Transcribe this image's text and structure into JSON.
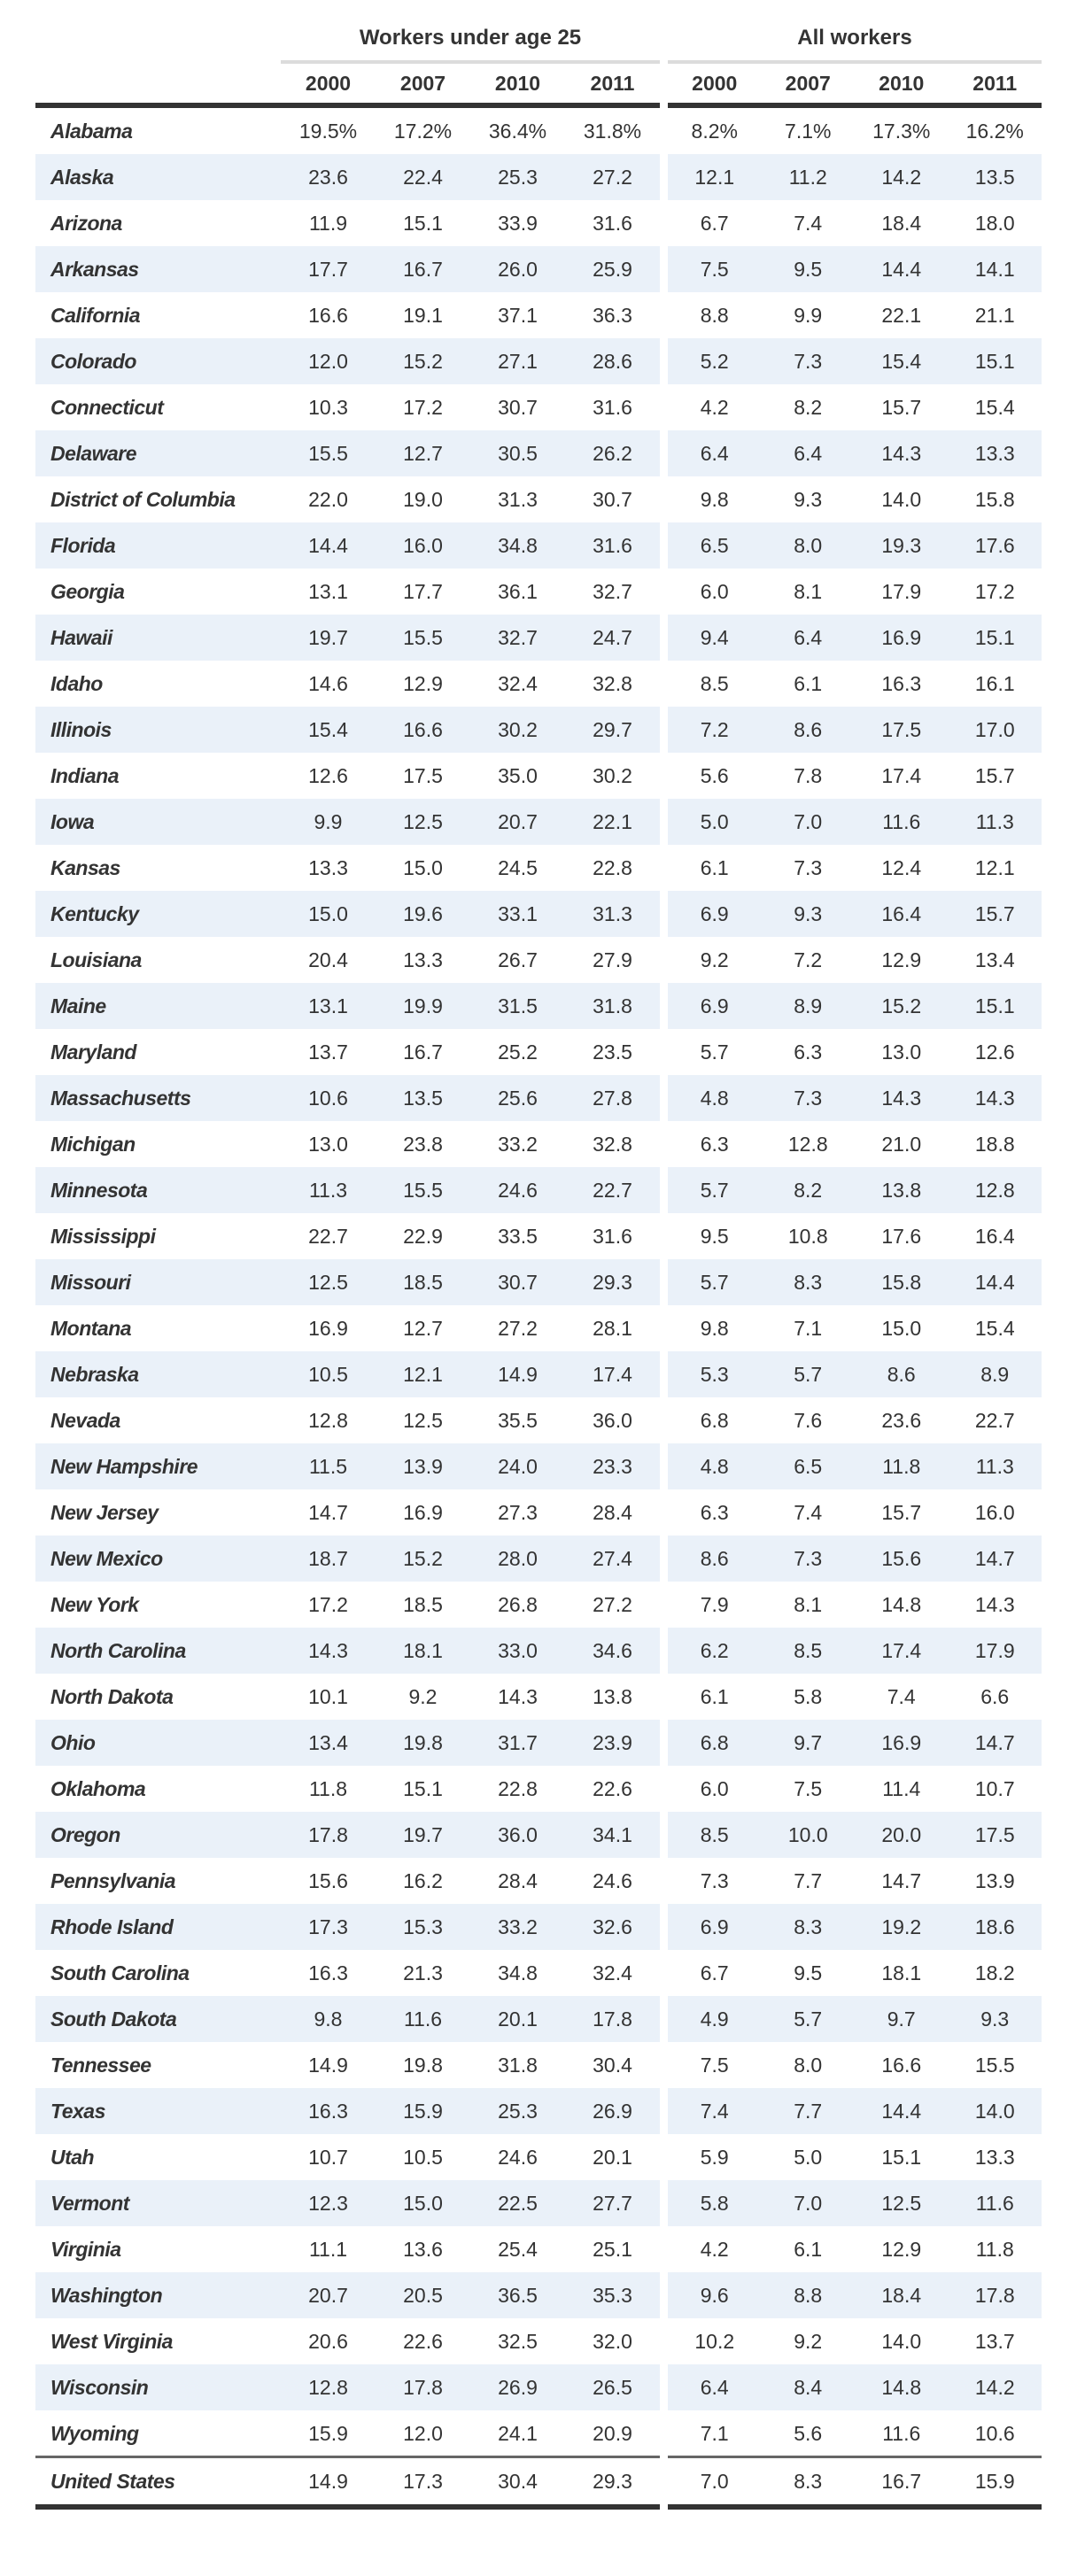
{
  "table": {
    "groups": [
      {
        "title": "Workers under age 25",
        "years": [
          "2000",
          "2007",
          "2010",
          "2011"
        ]
      },
      {
        "title": "All workers",
        "years": [
          "2000",
          "2007",
          "2010",
          "2011"
        ]
      }
    ],
    "rows": [
      {
        "state": "Alabama",
        "under25": [
          "19.5%",
          "17.2%",
          "36.4%",
          "31.8%"
        ],
        "all": [
          "8.2%",
          "7.1%",
          "17.3%",
          "16.2%"
        ]
      },
      {
        "state": "Alaska",
        "under25": [
          "23.6",
          "22.4",
          "25.3",
          "27.2"
        ],
        "all": [
          "12.1",
          "11.2",
          "14.2",
          "13.5"
        ]
      },
      {
        "state": "Arizona",
        "under25": [
          "11.9",
          "15.1",
          "33.9",
          "31.6"
        ],
        "all": [
          "6.7",
          "7.4",
          "18.4",
          "18.0"
        ]
      },
      {
        "state": "Arkansas",
        "under25": [
          "17.7",
          "16.7",
          "26.0",
          "25.9"
        ],
        "all": [
          "7.5",
          "9.5",
          "14.4",
          "14.1"
        ]
      },
      {
        "state": "California",
        "under25": [
          "16.6",
          "19.1",
          "37.1",
          "36.3"
        ],
        "all": [
          "8.8",
          "9.9",
          "22.1",
          "21.1"
        ]
      },
      {
        "state": "Colorado",
        "under25": [
          "12.0",
          "15.2",
          "27.1",
          "28.6"
        ],
        "all": [
          "5.2",
          "7.3",
          "15.4",
          "15.1"
        ]
      },
      {
        "state": "Connecticut",
        "under25": [
          "10.3",
          "17.2",
          "30.7",
          "31.6"
        ],
        "all": [
          "4.2",
          "8.2",
          "15.7",
          "15.4"
        ]
      },
      {
        "state": "Delaware",
        "under25": [
          "15.5",
          "12.7",
          "30.5",
          "26.2"
        ],
        "all": [
          "6.4",
          "6.4",
          "14.3",
          "13.3"
        ]
      },
      {
        "state": "District of Columbia",
        "under25": [
          "22.0",
          "19.0",
          "31.3",
          "30.7"
        ],
        "all": [
          "9.8",
          "9.3",
          "14.0",
          "15.8"
        ]
      },
      {
        "state": "Florida",
        "under25": [
          "14.4",
          "16.0",
          "34.8",
          "31.6"
        ],
        "all": [
          "6.5",
          "8.0",
          "19.3",
          "17.6"
        ]
      },
      {
        "state": "Georgia",
        "under25": [
          "13.1",
          "17.7",
          "36.1",
          "32.7"
        ],
        "all": [
          "6.0",
          "8.1",
          "17.9",
          "17.2"
        ]
      },
      {
        "state": "Hawaii",
        "under25": [
          "19.7",
          "15.5",
          "32.7",
          "24.7"
        ],
        "all": [
          "9.4",
          "6.4",
          "16.9",
          "15.1"
        ]
      },
      {
        "state": "Idaho",
        "under25": [
          "14.6",
          "12.9",
          "32.4",
          "32.8"
        ],
        "all": [
          "8.5",
          "6.1",
          "16.3",
          "16.1"
        ]
      },
      {
        "state": "Illinois",
        "under25": [
          "15.4",
          "16.6",
          "30.2",
          "29.7"
        ],
        "all": [
          "7.2",
          "8.6",
          "17.5",
          "17.0"
        ]
      },
      {
        "state": "Indiana",
        "under25": [
          "12.6",
          "17.5",
          "35.0",
          "30.2"
        ],
        "all": [
          "5.6",
          "7.8",
          "17.4",
          "15.7"
        ]
      },
      {
        "state": "Iowa",
        "under25": [
          "9.9",
          "12.5",
          "20.7",
          "22.1"
        ],
        "all": [
          "5.0",
          "7.0",
          "11.6",
          "11.3"
        ]
      },
      {
        "state": "Kansas",
        "under25": [
          "13.3",
          "15.0",
          "24.5",
          "22.8"
        ],
        "all": [
          "6.1",
          "7.3",
          "12.4",
          "12.1"
        ]
      },
      {
        "state": "Kentucky",
        "under25": [
          "15.0",
          "19.6",
          "33.1",
          "31.3"
        ],
        "all": [
          "6.9",
          "9.3",
          "16.4",
          "15.7"
        ]
      },
      {
        "state": "Louisiana",
        "under25": [
          "20.4",
          "13.3",
          "26.7",
          "27.9"
        ],
        "all": [
          "9.2",
          "7.2",
          "12.9",
          "13.4"
        ]
      },
      {
        "state": "Maine",
        "under25": [
          "13.1",
          "19.9",
          "31.5",
          "31.8"
        ],
        "all": [
          "6.9",
          "8.9",
          "15.2",
          "15.1"
        ]
      },
      {
        "state": "Maryland",
        "under25": [
          "13.7",
          "16.7",
          "25.2",
          "23.5"
        ],
        "all": [
          "5.7",
          "6.3",
          "13.0",
          "12.6"
        ]
      },
      {
        "state": "Massachusetts",
        "under25": [
          "10.6",
          "13.5",
          "25.6",
          "27.8"
        ],
        "all": [
          "4.8",
          "7.3",
          "14.3",
          "14.3"
        ]
      },
      {
        "state": "Michigan",
        "under25": [
          "13.0",
          "23.8",
          "33.2",
          "32.8"
        ],
        "all": [
          "6.3",
          "12.8",
          "21.0",
          "18.8"
        ]
      },
      {
        "state": "Minnesota",
        "under25": [
          "11.3",
          "15.5",
          "24.6",
          "22.7"
        ],
        "all": [
          "5.7",
          "8.2",
          "13.8",
          "12.8"
        ]
      },
      {
        "state": "Mississippi",
        "under25": [
          "22.7",
          "22.9",
          "33.5",
          "31.6"
        ],
        "all": [
          "9.5",
          "10.8",
          "17.6",
          "16.4"
        ]
      },
      {
        "state": "Missouri",
        "under25": [
          "12.5",
          "18.5",
          "30.7",
          "29.3"
        ],
        "all": [
          "5.7",
          "8.3",
          "15.8",
          "14.4"
        ]
      },
      {
        "state": "Montana",
        "under25": [
          "16.9",
          "12.7",
          "27.2",
          "28.1"
        ],
        "all": [
          "9.8",
          "7.1",
          "15.0",
          "15.4"
        ]
      },
      {
        "state": "Nebraska",
        "under25": [
          "10.5",
          "12.1",
          "14.9",
          "17.4"
        ],
        "all": [
          "5.3",
          "5.7",
          "8.6",
          "8.9"
        ]
      },
      {
        "state": "Nevada",
        "under25": [
          "12.8",
          "12.5",
          "35.5",
          "36.0"
        ],
        "all": [
          "6.8",
          "7.6",
          "23.6",
          "22.7"
        ]
      },
      {
        "state": "New Hampshire",
        "under25": [
          "11.5",
          "13.9",
          "24.0",
          "23.3"
        ],
        "all": [
          "4.8",
          "6.5",
          "11.8",
          "11.3"
        ]
      },
      {
        "state": "New Jersey",
        "under25": [
          "14.7",
          "16.9",
          "27.3",
          "28.4"
        ],
        "all": [
          "6.3",
          "7.4",
          "15.7",
          "16.0"
        ]
      },
      {
        "state": "New Mexico",
        "under25": [
          "18.7",
          "15.2",
          "28.0",
          "27.4"
        ],
        "all": [
          "8.6",
          "7.3",
          "15.6",
          "14.7"
        ]
      },
      {
        "state": "New York",
        "under25": [
          "17.2",
          "18.5",
          "26.8",
          "27.2"
        ],
        "all": [
          "7.9",
          "8.1",
          "14.8",
          "14.3"
        ]
      },
      {
        "state": "North Carolina",
        "under25": [
          "14.3",
          "18.1",
          "33.0",
          "34.6"
        ],
        "all": [
          "6.2",
          "8.5",
          "17.4",
          "17.9"
        ]
      },
      {
        "state": "North Dakota",
        "under25": [
          "10.1",
          "9.2",
          "14.3",
          "13.8"
        ],
        "all": [
          "6.1",
          "5.8",
          "7.4",
          "6.6"
        ]
      },
      {
        "state": "Ohio",
        "under25": [
          "13.4",
          "19.8",
          "31.7",
          "23.9"
        ],
        "all": [
          "6.8",
          "9.7",
          "16.9",
          "14.7"
        ]
      },
      {
        "state": "Oklahoma",
        "under25": [
          "11.8",
          "15.1",
          "22.8",
          "22.6"
        ],
        "all": [
          "6.0",
          "7.5",
          "11.4",
          "10.7"
        ]
      },
      {
        "state": "Oregon",
        "under25": [
          "17.8",
          "19.7",
          "36.0",
          "34.1"
        ],
        "all": [
          "8.5",
          "10.0",
          "20.0",
          "17.5"
        ]
      },
      {
        "state": "Pennsylvania",
        "under25": [
          "15.6",
          "16.2",
          "28.4",
          "24.6"
        ],
        "all": [
          "7.3",
          "7.7",
          "14.7",
          "13.9"
        ]
      },
      {
        "state": "Rhode Island",
        "under25": [
          "17.3",
          "15.3",
          "33.2",
          "32.6"
        ],
        "all": [
          "6.9",
          "8.3",
          "19.2",
          "18.6"
        ]
      },
      {
        "state": "South Carolina",
        "under25": [
          "16.3",
          "21.3",
          "34.8",
          "32.4"
        ],
        "all": [
          "6.7",
          "9.5",
          "18.1",
          "18.2"
        ]
      },
      {
        "state": "South Dakota",
        "under25": [
          "9.8",
          "11.6",
          "20.1",
          "17.8"
        ],
        "all": [
          "4.9",
          "5.7",
          "9.7",
          "9.3"
        ]
      },
      {
        "state": "Tennessee",
        "under25": [
          "14.9",
          "19.8",
          "31.8",
          "30.4"
        ],
        "all": [
          "7.5",
          "8.0",
          "16.6",
          "15.5"
        ]
      },
      {
        "state": "Texas",
        "under25": [
          "16.3",
          "15.9",
          "25.3",
          "26.9"
        ],
        "all": [
          "7.4",
          "7.7",
          "14.4",
          "14.0"
        ]
      },
      {
        "state": "Utah",
        "under25": [
          "10.7",
          "10.5",
          "24.6",
          "20.1"
        ],
        "all": [
          "5.9",
          "5.0",
          "15.1",
          "13.3"
        ]
      },
      {
        "state": "Vermont",
        "under25": [
          "12.3",
          "15.0",
          "22.5",
          "27.7"
        ],
        "all": [
          "5.8",
          "7.0",
          "12.5",
          "11.6"
        ]
      },
      {
        "state": "Virginia",
        "under25": [
          "11.1",
          "13.6",
          "25.4",
          "25.1"
        ],
        "all": [
          "4.2",
          "6.1",
          "12.9",
          "11.8"
        ]
      },
      {
        "state": "Washington",
        "under25": [
          "20.7",
          "20.5",
          "36.5",
          "35.3"
        ],
        "all": [
          "9.6",
          "8.8",
          "18.4",
          "17.8"
        ]
      },
      {
        "state": "West Virginia",
        "under25": [
          "20.6",
          "22.6",
          "32.5",
          "32.0"
        ],
        "all": [
          "10.2",
          "9.2",
          "14.0",
          "13.7"
        ]
      },
      {
        "state": "Wisconsin",
        "under25": [
          "12.8",
          "17.8",
          "26.9",
          "26.5"
        ],
        "all": [
          "6.4",
          "8.4",
          "14.8",
          "14.2"
        ]
      },
      {
        "state": "Wyoming",
        "under25": [
          "15.9",
          "12.0",
          "24.1",
          "20.9"
        ],
        "all": [
          "7.1",
          "5.6",
          "11.6",
          "10.6"
        ]
      }
    ],
    "total": {
      "state": "United States",
      "under25": [
        "14.9",
        "17.3",
        "30.4",
        "29.3"
      ],
      "all": [
        "7.0",
        "8.3",
        "16.7",
        "15.9"
      ]
    }
  },
  "colors": {
    "text": "#333333",
    "stripe": "#eaf1f9",
    "thick_rule": "#333333",
    "light_rule": "#dcdcdc",
    "total_divider": "#666666"
  }
}
